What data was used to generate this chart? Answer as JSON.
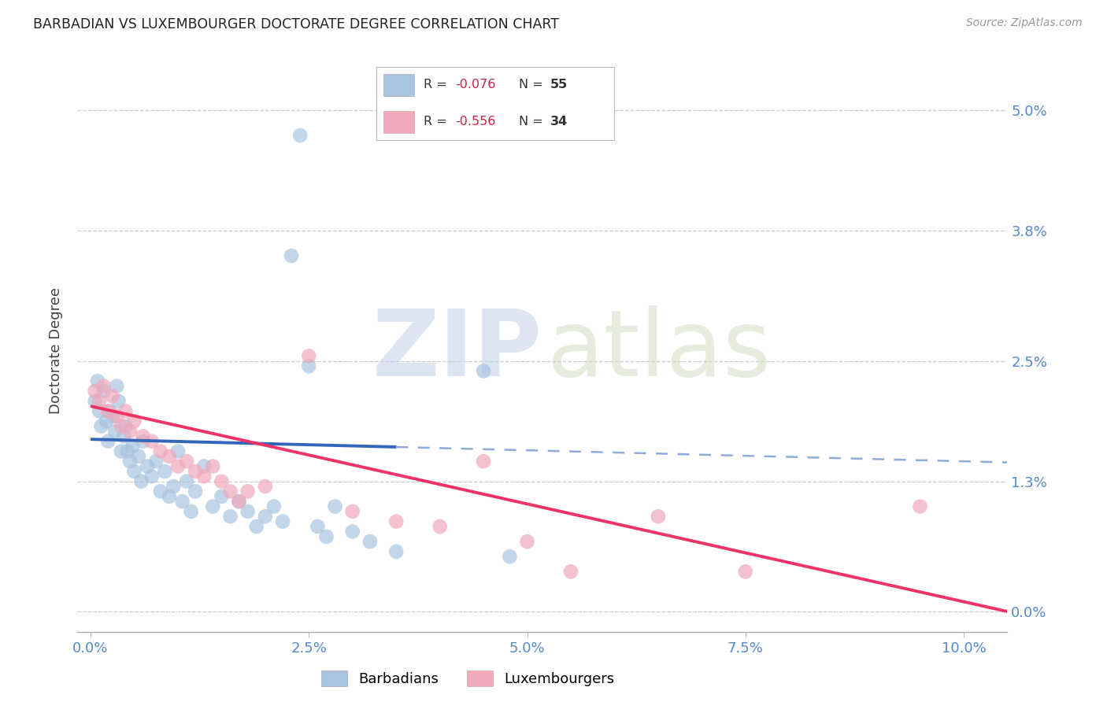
{
  "title": "BARBADIAN VS LUXEMBOURGER DOCTORATE DEGREE CORRELATION CHART",
  "source": "Source: ZipAtlas.com",
  "ylabel": "Doctorate Degree",
  "xtick_vals": [
    0.0,
    2.5,
    5.0,
    7.5,
    10.0
  ],
  "xtick_labels": [
    "0.0%",
    "2.5%",
    "5.0%",
    "7.5%",
    "10.0%"
  ],
  "ytick_vals": [
    0.0,
    1.3,
    2.5,
    3.8,
    5.0
  ],
  "ytick_labels": [
    "0.0%",
    "1.3%",
    "2.5%",
    "3.8%",
    "5.0%"
  ],
  "xlim": [
    -0.15,
    10.5
  ],
  "ylim": [
    -0.2,
    5.4
  ],
  "blue_r": "-0.076",
  "blue_n": "55",
  "pink_r": "-0.556",
  "pink_n": "34",
  "blue_fill": "#A8C4E0",
  "pink_fill": "#F0A8BB",
  "blue_line": "#3366BB",
  "pink_line": "#EE3366",
  "blue_scatter_x": [
    0.05,
    0.08,
    0.1,
    0.12,
    0.15,
    0.18,
    0.2,
    0.22,
    0.25,
    0.28,
    0.3,
    0.32,
    0.35,
    0.38,
    0.4,
    0.42,
    0.45,
    0.48,
    0.5,
    0.55,
    0.58,
    0.6,
    0.65,
    0.7,
    0.75,
    0.8,
    0.85,
    0.9,
    0.95,
    1.0,
    1.05,
    1.1,
    1.15,
    1.2,
    1.3,
    1.4,
    1.5,
    1.6,
    1.7,
    1.8,
    1.9,
    2.0,
    2.1,
    2.2,
    2.3,
    2.4,
    2.5,
    2.6,
    2.7,
    2.8,
    3.0,
    3.2,
    3.5,
    4.5,
    4.8
  ],
  "blue_scatter_y": [
    2.1,
    2.3,
    2.0,
    1.85,
    2.2,
    1.9,
    1.7,
    2.0,
    1.95,
    1.8,
    2.25,
    2.1,
    1.6,
    1.75,
    1.85,
    1.6,
    1.5,
    1.65,
    1.4,
    1.55,
    1.3,
    1.7,
    1.45,
    1.35,
    1.5,
    1.2,
    1.4,
    1.15,
    1.25,
    1.6,
    1.1,
    1.3,
    1.0,
    1.2,
    1.45,
    1.05,
    1.15,
    0.95,
    1.1,
    1.0,
    0.85,
    0.95,
    1.05,
    0.9,
    3.55,
    4.75,
    2.45,
    0.85,
    0.75,
    1.05,
    0.8,
    0.7,
    0.6,
    2.4,
    0.55
  ],
  "pink_scatter_x": [
    0.05,
    0.1,
    0.15,
    0.2,
    0.25,
    0.3,
    0.35,
    0.4,
    0.45,
    0.5,
    0.6,
    0.7,
    0.8,
    0.9,
    1.0,
    1.1,
    1.2,
    1.3,
    1.4,
    1.5,
    1.6,
    1.7,
    1.8,
    2.0,
    2.5,
    3.0,
    3.5,
    4.0,
    4.5,
    5.0,
    5.5,
    6.5,
    7.5,
    9.5
  ],
  "pink_scatter_y": [
    2.2,
    2.1,
    2.25,
    2.0,
    2.15,
    1.95,
    1.85,
    2.0,
    1.8,
    1.9,
    1.75,
    1.7,
    1.6,
    1.55,
    1.45,
    1.5,
    1.4,
    1.35,
    1.45,
    1.3,
    1.2,
    1.1,
    1.2,
    1.25,
    2.55,
    1.0,
    0.9,
    0.85,
    1.5,
    0.7,
    0.4,
    0.95,
    0.4,
    1.05
  ],
  "blue_solid_x0": 0.0,
  "blue_solid_x1": 3.5,
  "blue_dash_x0": 3.5,
  "blue_dash_x1": 10.5,
  "blue_line_m": -0.022,
  "blue_line_b": 1.72,
  "pink_line_m": -0.195,
  "pink_line_b": 2.05,
  "pink_line_x0": 0.0,
  "pink_line_x1": 10.5
}
